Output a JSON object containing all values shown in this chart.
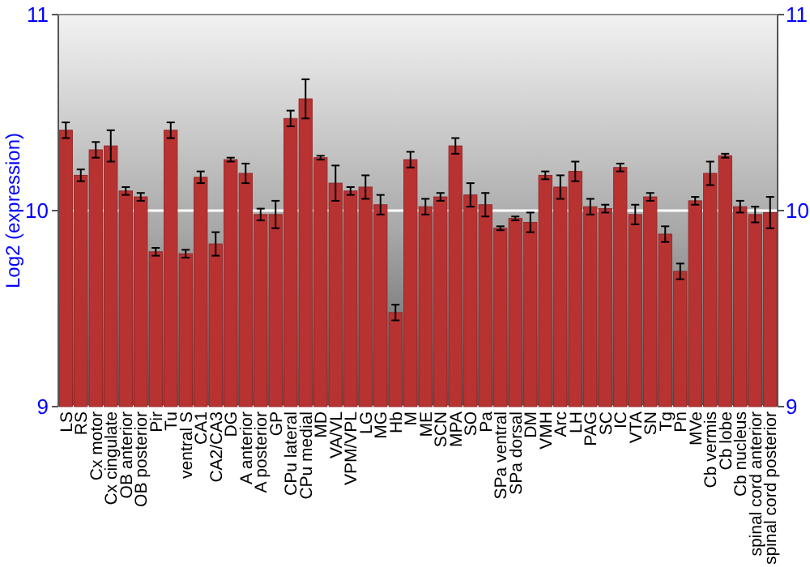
{
  "chart_data": {
    "type": "bar",
    "ylabel": "Log2 (expression)",
    "categories": [
      "LS",
      "RS",
      "Cx motor",
      "Cx cingulate",
      "OB anterior",
      "OB posterior",
      "Pir",
      "Tu",
      "ventral S",
      "CA1",
      "CA2/CA3",
      "DG",
      "A anterior",
      "A posterior",
      "GP",
      "CPu lateral",
      "CPu medial",
      "MD",
      "VA/VL",
      "VPM/VPL",
      "LG",
      "MG",
      "Hb",
      "M",
      "ME",
      "SCN",
      "MPA",
      "SO",
      "Pa",
      "SPa ventral",
      "SPa dorsal",
      "DM",
      "VMH",
      "Arc",
      "LH",
      "PAG",
      "SC",
      "IC",
      "VTA",
      "SN",
      "Tg",
      "Pn",
      "MVe",
      "Cb vermis",
      "Cb lobe",
      "Cb nucleus",
      "spinal cord anterior",
      "spinal cord posterior"
    ],
    "values": [
      10.41,
      10.18,
      10.31,
      10.33,
      10.1,
      10.07,
      9.79,
      10.41,
      9.78,
      10.17,
      9.83,
      10.26,
      10.19,
      9.98,
      9.98,
      10.47,
      10.57,
      10.27,
      10.14,
      10.1,
      10.12,
      10.03,
      9.48,
      10.26,
      10.02,
      10.07,
      10.33,
      10.08,
      10.03,
      9.91,
      9.96,
      9.94,
      10.18,
      10.12,
      10.2,
      10.02,
      10.01,
      10.22,
      9.98,
      10.07,
      9.88,
      9.69,
      10.05,
      10.19,
      10.28,
      10.02,
      9.98,
      9.99
    ],
    "errors": [
      0.04,
      0.03,
      0.04,
      0.08,
      0.02,
      0.02,
      0.02,
      0.04,
      0.02,
      0.03,
      0.06,
      0.01,
      0.05,
      0.03,
      0.07,
      0.04,
      0.1,
      0.01,
      0.09,
      0.02,
      0.06,
      0.05,
      0.04,
      0.04,
      0.04,
      0.02,
      0.04,
      0.06,
      0.06,
      0.01,
      0.01,
      0.05,
      0.02,
      0.06,
      0.05,
      0.04,
      0.02,
      0.02,
      0.05,
      0.02,
      0.04,
      0.04,
      0.02,
      0.06,
      0.01,
      0.03,
      0.04,
      0.08
    ],
    "color": "#b83232",
    "ylim": [
      9,
      11
    ],
    "yticks": [
      9,
      10,
      11
    ],
    "y2lim": [
      9,
      11
    ],
    "y2ticks": [
      9,
      10,
      11
    ],
    "grid": "y"
  }
}
